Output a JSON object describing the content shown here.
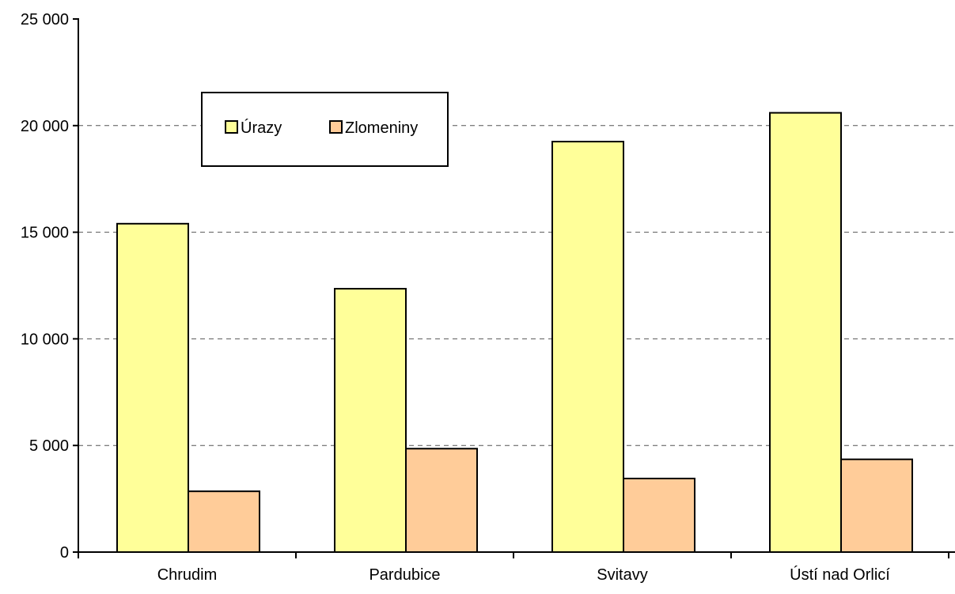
{
  "chart_data": {
    "type": "bar",
    "categories": [
      "Chrudim",
      "Pardubice",
      "Svitavy",
      "Ústí nad Orlicí"
    ],
    "series": [
      {
        "name": "Úrazy",
        "values": [
          15400,
          12350,
          19250,
          20600
        ],
        "color": "#ffff99"
      },
      {
        "name": "Zlomeniny",
        "values": [
          2850,
          4850,
          3450,
          4350
        ],
        "color": "#ffcc99"
      }
    ],
    "ylim": [
      0,
      25000
    ],
    "yticks": [
      0,
      5000,
      10000,
      15000,
      20000,
      25000
    ],
    "ytick_labels": [
      "0",
      "5 000",
      "10 000",
      "15 000",
      "20 000",
      "25 000"
    ],
    "grid": true,
    "grid_style": "dashed",
    "legend_position": "top-left",
    "title": "",
    "xlabel": "",
    "ylabel": ""
  }
}
